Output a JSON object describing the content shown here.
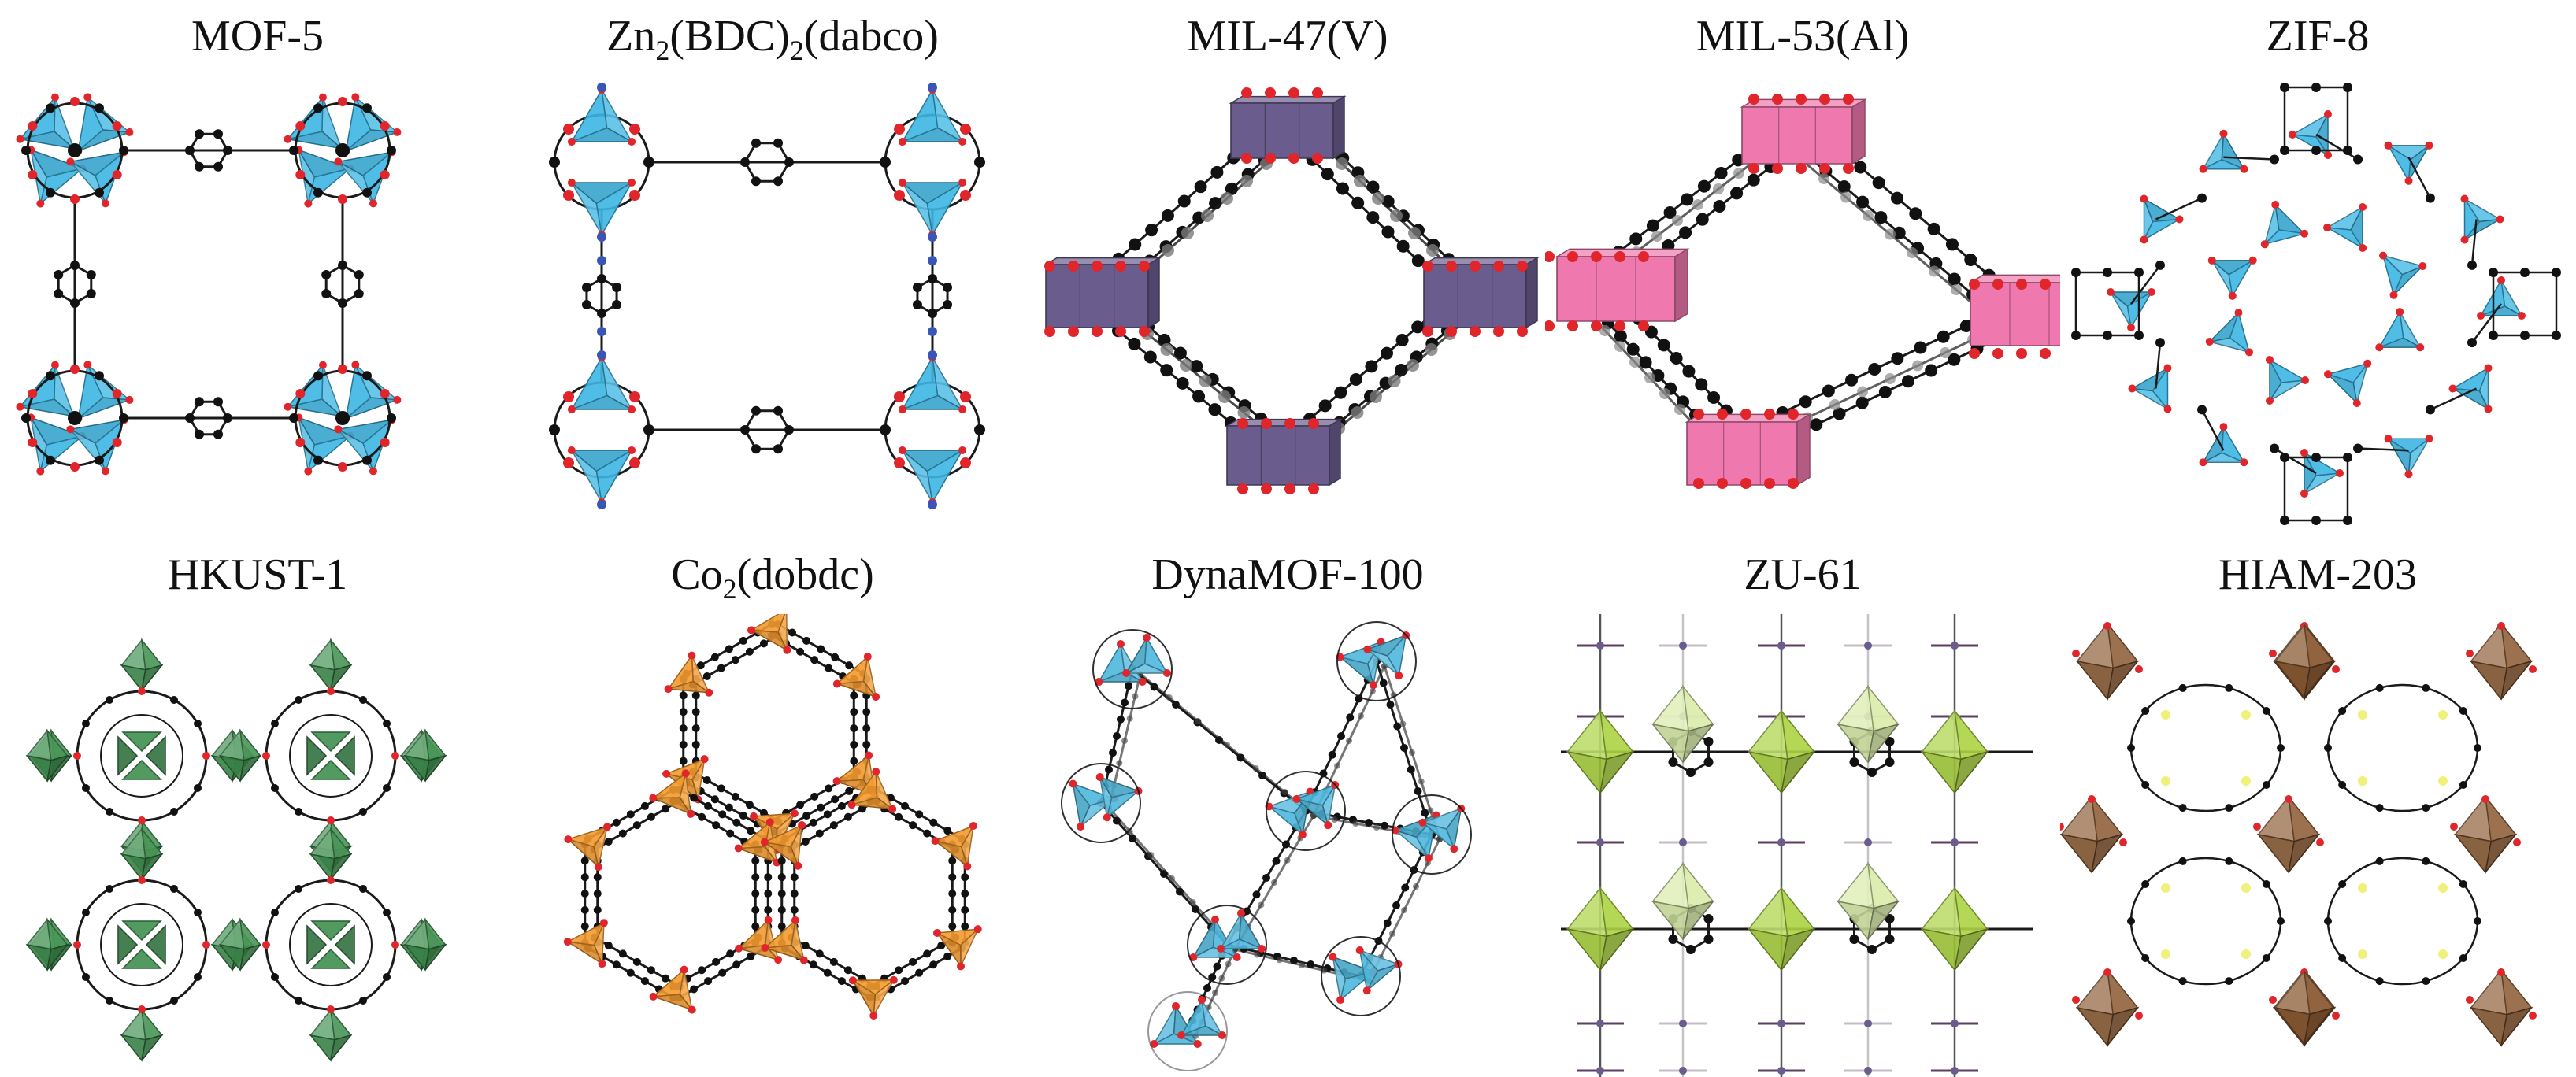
{
  "colors": {
    "atom_c": "#111111",
    "atom_o": "#e0252b",
    "atom_n": "#3a55b8",
    "atom_f": "#f0f07a",
    "bond": "#1a1a1a"
  },
  "panels": [
    {
      "title_parts": [
        {
          "t": "MOF-5"
        }
      ],
      "motif": "square-mof5",
      "poly_color": "#3db6e3"
    },
    {
      "title_parts": [
        {
          "t": "Zn"
        },
        {
          "t": "2",
          "sub": true
        },
        {
          "t": "(BDC)"
        },
        {
          "t": "2",
          "sub": true
        },
        {
          "t": "(dabco)"
        }
      ],
      "motif": "square-pillared",
      "poly_color": "#3db6e3"
    },
    {
      "title_parts": [
        {
          "t": "MIL-47(V)"
        }
      ],
      "motif": "rhombus",
      "poly_color": "#6a5c8d"
    },
    {
      "title_parts": [
        {
          "t": "MIL-53(Al)"
        }
      ],
      "motif": "rhombus-wide",
      "poly_color": "#ef79ae"
    },
    {
      "title_parts": [
        {
          "t": "ZIF-8"
        }
      ],
      "motif": "sodalite",
      "poly_color": "#3db6e3"
    },
    {
      "title_parts": [
        {
          "t": "HKUST-1"
        }
      ],
      "motif": "hkust",
      "poly_color": "#3f8f4f"
    },
    {
      "title_parts": [
        {
          "t": "Co"
        },
        {
          "t": "2",
          "sub": true
        },
        {
          "t": "(dobdc)"
        }
      ],
      "motif": "honeycomb",
      "poly_color": "#f39a2f"
    },
    {
      "title_parts": [
        {
          "t": "DynaMOF-100"
        }
      ],
      "motif": "scatter",
      "poly_color": "#4fb7dd"
    },
    {
      "title_parts": [
        {
          "t": "ZU-61"
        }
      ],
      "motif": "pillared-oct",
      "poly_color": "#a8d13a"
    },
    {
      "title_parts": [
        {
          "t": "HIAM-203"
        }
      ],
      "motif": "grid-oct",
      "poly_color": "#8a5a33"
    }
  ]
}
